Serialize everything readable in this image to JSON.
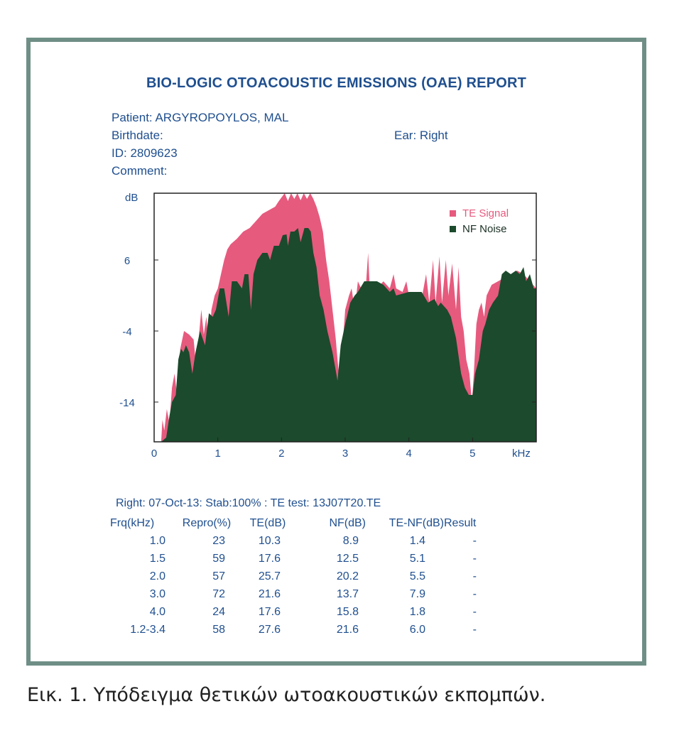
{
  "report": {
    "title": "BIO-LOGIC OTOACOUSTIC EMISSIONS (OAE) REPORT",
    "patient_label": "Patient:",
    "patient_value": "ARGYROPOYLOS, MAL",
    "birthdate_label": "Birthdate:",
    "ear_label": "Ear:",
    "ear_value": "Right",
    "id_label": "ID:",
    "id_value": "2809623",
    "comment_label": "Comment:",
    "test_line": "Right: 07-Oct-13: Stab:100% : TE test: 13J07T20.TE"
  },
  "colors": {
    "frame": "#6f8f86",
    "text": "#1f4f8f",
    "te_signal": "#e65a7e",
    "nf_noise": "#1b4a2c"
  },
  "chart_data": {
    "type": "area",
    "ylabel": "dB",
    "xlabel": "kHz",
    "x_ticks": [
      "0",
      "1",
      "2",
      "3",
      "4",
      "5"
    ],
    "y_ticks": [
      "6",
      "-4",
      "-14"
    ],
    "xlim": [
      0,
      6
    ],
    "ylim": [
      -19.6,
      15.4
    ],
    "grid": false,
    "legend_position": "top-right",
    "series": [
      {
        "name": "TE Signal",
        "points": [
          [
            0.11,
            -19.6
          ],
          [
            0.13,
            -16.5
          ],
          [
            0.16,
            -18
          ],
          [
            0.2,
            -15
          ],
          [
            0.24,
            -17
          ],
          [
            0.28,
            -12
          ],
          [
            0.32,
            -10
          ],
          [
            0.36,
            -13
          ],
          [
            0.41,
            -6.5
          ],
          [
            0.47,
            -4
          ],
          [
            0.55,
            -4.5
          ],
          [
            0.62,
            -5.2
          ],
          [
            0.66,
            -9
          ],
          [
            0.7,
            -5
          ],
          [
            0.74,
            -1
          ],
          [
            0.78,
            -4.5
          ],
          [
            0.82,
            -2
          ],
          [
            0.86,
            -6.5
          ],
          [
            0.9,
            -1
          ],
          [
            0.95,
            1
          ],
          [
            1.0,
            2
          ],
          [
            1.05,
            4
          ],
          [
            1.1,
            6
          ],
          [
            1.15,
            7.5
          ],
          [
            1.2,
            8.2
          ],
          [
            1.3,
            9
          ],
          [
            1.4,
            10
          ],
          [
            1.5,
            10.5
          ],
          [
            1.6,
            11.5
          ],
          [
            1.7,
            12.5
          ],
          [
            1.8,
            13
          ],
          [
            1.9,
            13.5
          ],
          [
            1.95,
            14.2
          ],
          [
            2.0,
            14.8
          ],
          [
            2.05,
            15.4
          ],
          [
            2.1,
            14.3
          ],
          [
            2.15,
            15.4
          ],
          [
            2.2,
            14.6
          ],
          [
            2.25,
            15.4
          ],
          [
            2.3,
            14.4
          ],
          [
            2.35,
            15.4
          ],
          [
            2.4,
            14.6
          ],
          [
            2.45,
            15.4
          ],
          [
            2.5,
            14.6
          ],
          [
            2.55,
            13.5
          ],
          [
            2.6,
            12
          ],
          [
            2.65,
            10
          ],
          [
            2.7,
            6
          ],
          [
            2.75,
            3
          ],
          [
            2.8,
            -1
          ],
          [
            2.85,
            -5
          ],
          [
            2.88,
            -8
          ],
          [
            2.92,
            -12
          ],
          [
            2.96,
            -6
          ],
          [
            3.0,
            -1
          ],
          [
            3.06,
            1
          ],
          [
            3.1,
            2
          ],
          [
            3.15,
            -1
          ],
          [
            3.2,
            3
          ],
          [
            3.25,
            2
          ],
          [
            3.3,
            -1
          ],
          [
            3.36,
            7
          ],
          [
            3.4,
            -1
          ],
          [
            3.5,
            2
          ],
          [
            3.6,
            3
          ],
          [
            3.7,
            2
          ],
          [
            3.76,
            4
          ],
          [
            3.8,
            2
          ],
          [
            3.9,
            1.5
          ],
          [
            3.96,
            3
          ],
          [
            4.0,
            1
          ],
          [
            4.1,
            1.2
          ],
          [
            4.2,
            0.5
          ],
          [
            4.27,
            4
          ],
          [
            4.32,
            0
          ],
          [
            4.38,
            6
          ],
          [
            4.42,
            0
          ],
          [
            4.48,
            6.5
          ],
          [
            4.52,
            0
          ],
          [
            4.58,
            6
          ],
          [
            4.62,
            1
          ],
          [
            4.68,
            5.5
          ],
          [
            4.74,
            -1
          ],
          [
            4.78,
            5
          ],
          [
            4.82,
            -2
          ],
          [
            4.86,
            -4
          ],
          [
            4.9,
            -8
          ],
          [
            4.95,
            -10
          ],
          [
            4.99,
            -14
          ],
          [
            5.02,
            -10
          ],
          [
            5.06,
            -3
          ],
          [
            5.1,
            -1
          ],
          [
            5.14,
            0
          ],
          [
            5.18,
            -2
          ],
          [
            5.22,
            1
          ],
          [
            5.3,
            2.5
          ],
          [
            5.4,
            3
          ],
          [
            5.5,
            3.5
          ],
          [
            5.6,
            4
          ],
          [
            5.7,
            4.5
          ],
          [
            5.8,
            4
          ],
          [
            5.9,
            3
          ],
          [
            6.0,
            2
          ]
        ]
      },
      {
        "name": "NF Noise",
        "points": [
          [
            0.11,
            -19.6
          ],
          [
            0.19,
            -19
          ],
          [
            0.24,
            -16
          ],
          [
            0.28,
            -14
          ],
          [
            0.34,
            -13
          ],
          [
            0.38,
            -8
          ],
          [
            0.42,
            -6.5
          ],
          [
            0.46,
            -7
          ],
          [
            0.5,
            -6
          ],
          [
            0.55,
            -7
          ],
          [
            0.6,
            -10
          ],
          [
            0.65,
            -7
          ],
          [
            0.72,
            -4
          ],
          [
            0.8,
            -6
          ],
          [
            0.86,
            -1.5
          ],
          [
            0.92,
            -2
          ],
          [
            0.97,
            -1
          ],
          [
            1.03,
            2
          ],
          [
            1.1,
            2
          ],
          [
            1.17,
            -2
          ],
          [
            1.22,
            3
          ],
          [
            1.3,
            3
          ],
          [
            1.38,
            2
          ],
          [
            1.42,
            4
          ],
          [
            1.48,
            4
          ],
          [
            1.52,
            -1
          ],
          [
            1.56,
            4
          ],
          [
            1.62,
            6
          ],
          [
            1.7,
            7
          ],
          [
            1.78,
            7
          ],
          [
            1.82,
            6
          ],
          [
            1.88,
            8
          ],
          [
            1.96,
            8
          ],
          [
            2.02,
            9.5
          ],
          [
            2.08,
            9.6
          ],
          [
            2.1,
            8
          ],
          [
            2.14,
            10
          ],
          [
            2.2,
            10
          ],
          [
            2.26,
            10.5
          ],
          [
            2.3,
            8.5
          ],
          [
            2.36,
            10.5
          ],
          [
            2.42,
            10.5
          ],
          [
            2.46,
            10
          ],
          [
            2.5,
            7
          ],
          [
            2.55,
            5
          ],
          [
            2.6,
            1
          ],
          [
            2.66,
            -1
          ],
          [
            2.72,
            -4
          ],
          [
            2.8,
            -7
          ],
          [
            2.84,
            -9
          ],
          [
            2.88,
            -11
          ],
          [
            2.93,
            -6
          ],
          [
            3.0,
            -3
          ],
          [
            3.08,
            0
          ],
          [
            3.15,
            1
          ],
          [
            3.2,
            1.5
          ],
          [
            3.3,
            3
          ],
          [
            3.5,
            3
          ],
          [
            3.6,
            2.5
          ],
          [
            3.7,
            1.5
          ],
          [
            3.76,
            2
          ],
          [
            3.8,
            1
          ],
          [
            4.0,
            1.5
          ],
          [
            4.2,
            1.5
          ],
          [
            4.3,
            0
          ],
          [
            4.4,
            0.5
          ],
          [
            4.46,
            -0.5
          ],
          [
            4.5,
            0
          ],
          [
            4.6,
            -1
          ],
          [
            4.66,
            -2
          ],
          [
            4.74,
            -5
          ],
          [
            4.82,
            -10
          ],
          [
            4.88,
            -12
          ],
          [
            4.94,
            -13
          ],
          [
            5.0,
            -13
          ],
          [
            5.04,
            -10
          ],
          [
            5.1,
            -8
          ],
          [
            5.16,
            -4
          ],
          [
            5.2,
            -3
          ],
          [
            5.26,
            -1
          ],
          [
            5.32,
            0
          ],
          [
            5.4,
            1
          ],
          [
            5.46,
            4
          ],
          [
            5.52,
            4.5
          ],
          [
            5.6,
            4
          ],
          [
            5.68,
            4.5
          ],
          [
            5.74,
            4
          ],
          [
            5.8,
            5
          ],
          [
            5.84,
            3
          ],
          [
            5.9,
            4
          ],
          [
            5.96,
            2
          ],
          [
            6.0,
            2
          ]
        ]
      }
    ]
  },
  "table": {
    "headers": [
      "Frq(kHz)",
      "Repro(%)",
      "TE(dB)",
      "NF(dB)",
      "TE-NF(dB)",
      "Result"
    ],
    "rows": [
      [
        "1.0",
        "23",
        "10.3",
        "8.9",
        "1.4",
        "-"
      ],
      [
        "1.5",
        "59",
        "17.6",
        "12.5",
        "5.1",
        "-"
      ],
      [
        "2.0",
        "57",
        "25.7",
        "20.2",
        "5.5",
        "-"
      ],
      [
        "3.0",
        "72",
        "21.6",
        "13.7",
        "7.9",
        "-"
      ],
      [
        "4.0",
        "24",
        "17.6",
        "15.8",
        "1.8",
        "-"
      ],
      [
        "1.2-3.4",
        "58",
        "27.6",
        "21.6",
        "6.0",
        "-"
      ]
    ]
  },
  "caption": {
    "label": "Εικ. 1.",
    "text": "Υπόδειγμα θετικών ωτοακουστικών εκπομπών."
  }
}
